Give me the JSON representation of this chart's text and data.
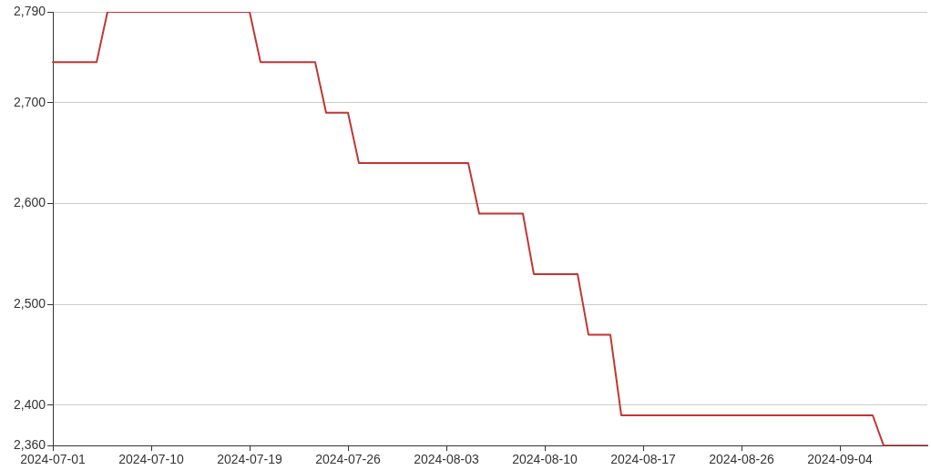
{
  "chart_data": {
    "type": "line",
    "categories": [
      "2024-07-01",
      null,
      null,
      null,
      null,
      null,
      null,
      null,
      null,
      "2024-07-10",
      null,
      null,
      null,
      null,
      null,
      null,
      null,
      null,
      "2024-07-19",
      null,
      null,
      null,
      null,
      null,
      null,
      null,
      null,
      "2024-07-26",
      null,
      null,
      null,
      null,
      null,
      null,
      null,
      null,
      "2024-08-03",
      null,
      null,
      null,
      null,
      null,
      null,
      null,
      null,
      "2024-08-10",
      null,
      null,
      null,
      null,
      null,
      null,
      null,
      null,
      "2024-08-17",
      null,
      null,
      null,
      null,
      null,
      null,
      null,
      null,
      "2024-08-26",
      null,
      null,
      null,
      null,
      null,
      null,
      null,
      null,
      "2024-09-04",
      null,
      null,
      null,
      null,
      null,
      null,
      null,
      null
    ],
    "series": [
      {
        "color": "#c23531",
        "values": [
          2740,
          2740,
          2740,
          2740,
          2740,
          2790,
          2790,
          2790,
          2790,
          2790,
          2790,
          2790,
          2790,
          2790,
          2790,
          2790,
          2790,
          2790,
          2790,
          2740,
          2740,
          2740,
          2740,
          2740,
          2740,
          2690,
          2690,
          2690,
          2640,
          2640,
          2640,
          2640,
          2640,
          2640,
          2640,
          2640,
          2640,
          2640,
          2640,
          2590,
          2590,
          2590,
          2590,
          2590,
          2530,
          2530,
          2530,
          2530,
          2530,
          2470,
          2470,
          2470,
          2390,
          2390,
          2390,
          2390,
          2390,
          2390,
          2390,
          2390,
          2390,
          2390,
          2390,
          2390,
          2390,
          2390,
          2390,
          2390,
          2390,
          2390,
          2390,
          2390,
          2390,
          2390,
          2390,
          2390,
          2360,
          2360,
          2360,
          2360,
          2360
        ]
      }
    ],
    "ylim": [
      2360,
      2790
    ],
    "yticks": [
      {
        "value": 2360,
        "label": "2,360"
      },
      {
        "value": 2400,
        "label": "2,400"
      },
      {
        "value": 2500,
        "label": "2,500"
      },
      {
        "value": 2600,
        "label": "2,600"
      },
      {
        "value": 2700,
        "label": "2,700"
      },
      {
        "value": 2790,
        "label": "2,790"
      }
    ],
    "grid": "y",
    "marker": "none",
    "line_style": "solid"
  }
}
